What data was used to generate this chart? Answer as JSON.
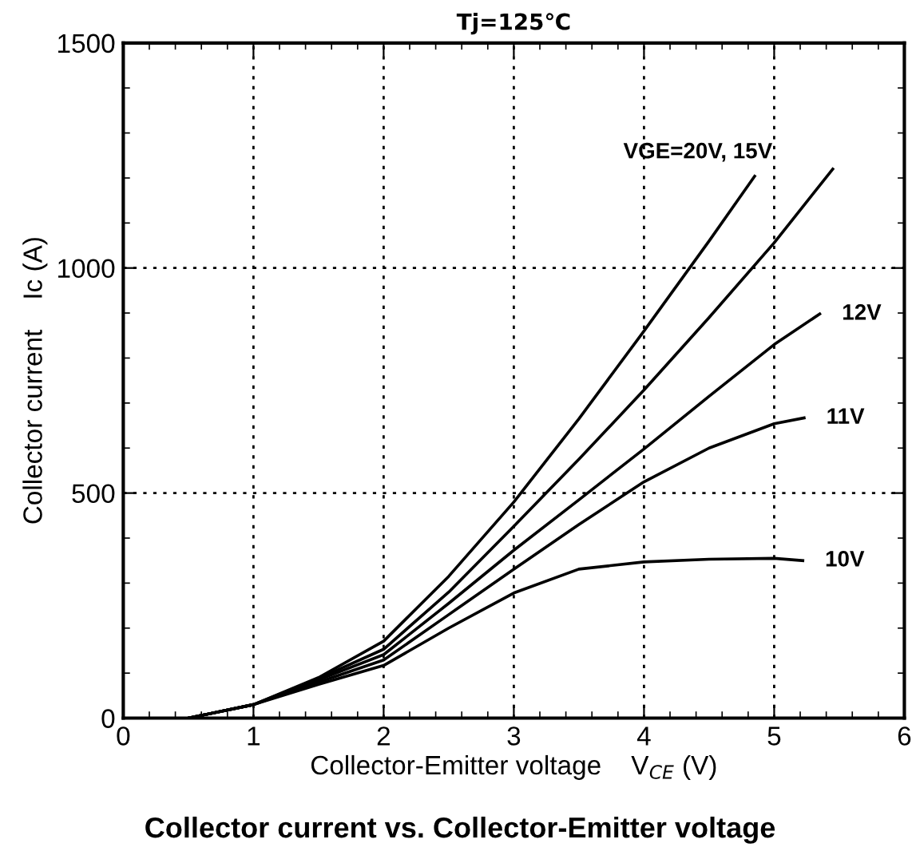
{
  "chart_data": {
    "type": "line",
    "title": "Tj=125℃",
    "xlabel": "Collector-Emitter voltage    V$_{CE}$ (V)",
    "ylabel": "Collector current    Ic (A)",
    "series": [
      {
        "color": "#000000",
        "x": [
          0.5,
          1,
          1.5,
          2,
          2.5,
          3,
          3.5,
          4,
          4.5,
          4.85
        ],
        "values": [
          0,
          30,
          90,
          171,
          315,
          480,
          665,
          860,
          1060,
          1204
        ]
      },
      {
        "color": "#000000",
        "x": [
          0.5,
          1,
          1.5,
          2,
          2.5,
          3,
          3.5,
          4,
          4.5,
          5,
          5.45
        ],
        "values": [
          0,
          30,
          88,
          153,
          280,
          426,
          575,
          729,
          890,
          1056,
          1220
        ]
      },
      {
        "color": "#000000",
        "x": [
          0.5,
          1,
          1.5,
          2,
          2.5,
          3,
          3.5,
          4,
          4.5,
          5,
          5.35
        ],
        "values": [
          0,
          30,
          85,
          141,
          255,
          373,
          485,
          598,
          715,
          830,
          898
        ]
      },
      {
        "color": "#000000",
        "x": [
          0.5,
          1,
          1.5,
          2,
          2.5,
          3,
          3.5,
          4,
          4.5,
          5,
          5.23
        ],
        "values": [
          0,
          30,
          80,
          129,
          230,
          331,
          430,
          525,
          600,
          654,
          667
        ]
      },
      {
        "color": "#000000",
        "x": [
          0.5,
          1,
          1.5,
          2,
          2.5,
          3,
          3.5,
          4,
          4.5,
          5,
          5.22
        ],
        "values": [
          0,
          30,
          75,
          117,
          200,
          278,
          331,
          347,
          353,
          355,
          350
        ]
      }
    ],
    "annotations": [
      {
        "text": "VGE=20V, 15V",
        "x": 4.85,
        "y": 1204
      },
      {
        "text": "12V",
        "x": 5.35,
        "y": 898
      },
      {
        "text": "11V",
        "x": 5.23,
        "y": 667
      },
      {
        "text": "10V",
        "x": 5.22,
        "y": 350
      },
      "Collector current vs. Collector-Emitter voltage"
    ],
    "xlim": [
      0,
      6
    ],
    "xticks": [
      0,
      1,
      2,
      3,
      4,
      5,
      6
    ],
    "ylim": [
      0,
      1500
    ],
    "yticks": [
      0,
      500,
      1000,
      1500
    ],
    "grid": true,
    "line_style": "solid",
    "marker": "none"
  }
}
